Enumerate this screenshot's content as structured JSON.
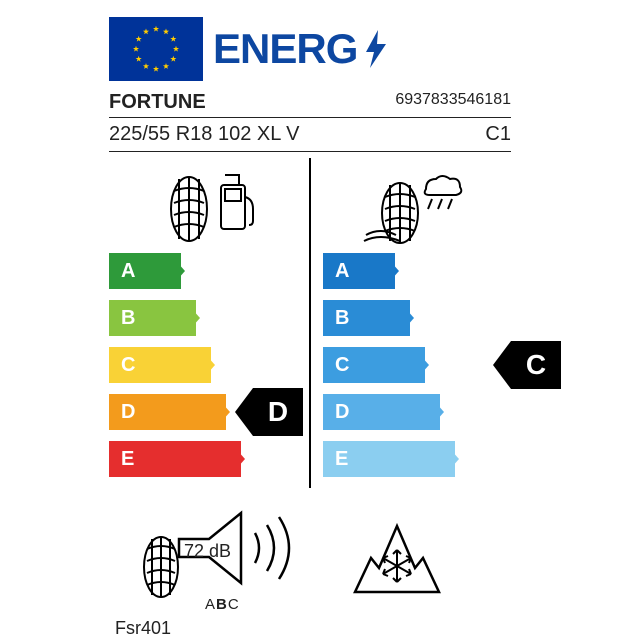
{
  "header": {
    "title": "ENERG",
    "flag_bg": "#003399",
    "star_color": "#ffcc00",
    "title_color": "#0d47a1"
  },
  "brand": "FORTUNE",
  "ean": "6937833546181",
  "size": "225/55 R18 102 XL V",
  "class": "C1",
  "grades": [
    "A",
    "B",
    "C",
    "D",
    "E"
  ],
  "left_colors": [
    "#2e9a3a",
    "#89c540",
    "#f9d236",
    "#f39b1c",
    "#e52e2e"
  ],
  "right_colors": [
    "#1978c8",
    "#2a8cd6",
    "#3c9de0",
    "#58afe8",
    "#8bcef0"
  ],
  "bar_start_width": 60,
  "bar_step": 15,
  "fuel_rating": "D",
  "wet_rating": "C",
  "fuel_rating_index": 3,
  "wet_rating_index": 2,
  "noise_db": "72 dB",
  "noise_class": "B",
  "model": "Fsr401",
  "marker_color": "#000000",
  "marker_text": "#ffffff",
  "icons": {
    "fuel": "fuel-efficiency-icon",
    "wet": "wet-grip-icon",
    "noise": "noise-icon",
    "snow": "snow-icon"
  }
}
